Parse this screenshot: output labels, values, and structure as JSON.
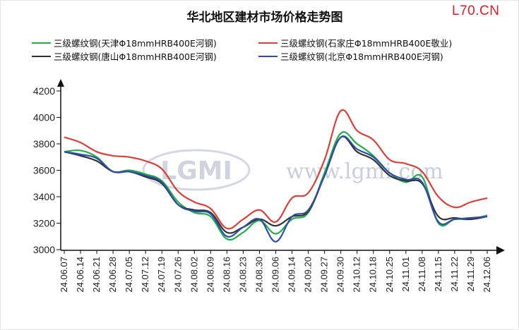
{
  "brand": "L70.CN",
  "watermark": {
    "logo": "LGMI",
    "url": "www.lgmi.com"
  },
  "chart_data": {
    "type": "line",
    "title": "华北地区建材市场价格走势图",
    "xlabel": "",
    "ylabel": "",
    "ylim": [
      3000,
      4200
    ],
    "yticks": [
      3000,
      3200,
      3400,
      3600,
      3800,
      4000,
      4200
    ],
    "grid": false,
    "legend_position": "top",
    "x_tick_labels": [
      "24.06.07",
      "24.06.14",
      "24.06.21",
      "24.06.28",
      "24.07.05",
      "24.07.12",
      "24.07.19",
      "24.07.26",
      "24.08.02",
      "24.08.09",
      "24.08.16",
      "24.08.23",
      "24.08.30",
      "24.09.06",
      "24.09.14",
      "24.09.20",
      "24.09.27",
      "24.09.30",
      "24.10.12",
      "24.10.18",
      "24.10.25",
      "24.11.01",
      "24.11.08",
      "24.11.15",
      "24.11.22",
      "24.11.29",
      "24.12.06"
    ],
    "series": [
      {
        "name": "三级螺纹钢(天津Φ18mmHRB400E河钢)",
        "color": "#22b04b",
        "values": [
          3740,
          3750,
          3700,
          3590,
          3600,
          3570,
          3520,
          3360,
          3280,
          3250,
          3080,
          3130,
          3220,
          3120,
          3230,
          3280,
          3580,
          3880,
          3800,
          3710,
          3580,
          3510,
          3550,
          3200,
          3230,
          3230,
          3260
        ]
      },
      {
        "name": "三级螺纹钢(石家庄Φ18mmHRB400E敬业)",
        "color": "#d9403a",
        "values": [
          3850,
          3810,
          3740,
          3710,
          3700,
          3670,
          3610,
          3440,
          3360,
          3310,
          3160,
          3230,
          3300,
          3210,
          3390,
          3430,
          3680,
          4050,
          3900,
          3830,
          3680,
          3650,
          3590,
          3400,
          3320,
          3360,
          3390
        ]
      },
      {
        "name": "三级螺纹钢(唐山Φ18mmHRB400E河钢)",
        "color": "#333333",
        "values": [
          3740,
          3710,
          3670,
          3590,
          3590,
          3550,
          3500,
          3340,
          3300,
          3280,
          3130,
          3170,
          3230,
          3180,
          3250,
          3290,
          3560,
          3850,
          3740,
          3680,
          3560,
          3520,
          3500,
          3250,
          3240,
          3230,
          3250
        ]
      },
      {
        "name": "三级螺纹钢(北京Φ18mmHRB400E河钢)",
        "color": "#2e4fa6",
        "values": [
          3740,
          3720,
          3690,
          3590,
          3590,
          3560,
          3510,
          3340,
          3290,
          3270,
          3100,
          3170,
          3230,
          3060,
          3250,
          3300,
          3560,
          3850,
          3760,
          3700,
          3580,
          3530,
          3510,
          3210,
          3230,
          3240,
          3250
        ]
      }
    ]
  }
}
